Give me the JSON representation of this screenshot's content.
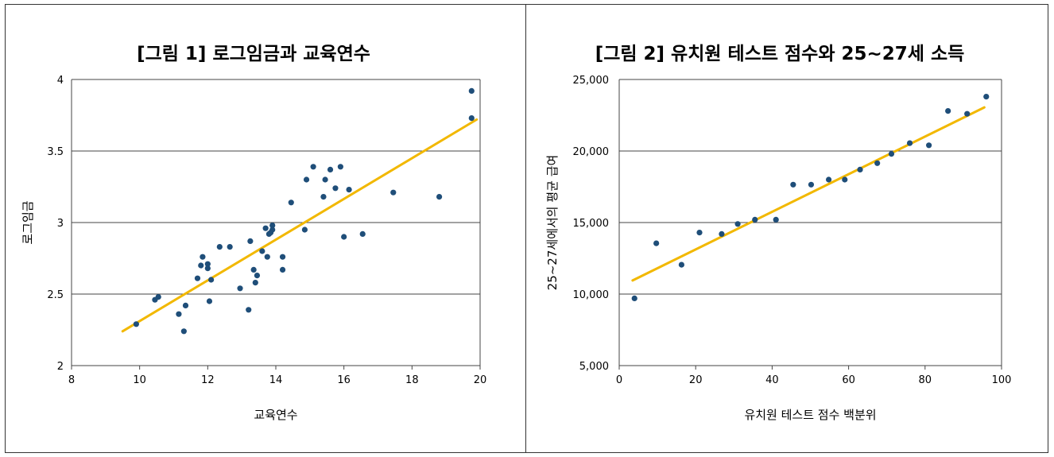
{
  "chart_data": [
    {
      "type": "scatter",
      "title": "[그림 1] 로그임금과 교육연수",
      "xlabel": "교육연수",
      "ylabel": "로그임금",
      "xlim": [
        8,
        20
      ],
      "ylim": [
        2,
        4
      ],
      "xticks": [
        "8",
        "10",
        "12",
        "14",
        "16",
        "18",
        "20"
      ],
      "yticks": [
        "2",
        "2.5",
        "3",
        "3.5",
        "4"
      ],
      "grid": "horizontal",
      "point_color": "#1f4e79",
      "line_color": "#f2b800",
      "series": [
        {
          "kind": "points",
          "x": [
            9.9,
            10.45,
            10.55,
            11.15,
            11.3,
            11.35,
            11.7,
            11.8,
            11.85,
            12.0,
            12.0,
            12.05,
            12.1,
            12.35,
            12.65,
            12.95,
            13.2,
            13.25,
            13.35,
            13.4,
            13.45,
            13.6,
            13.7,
            13.75,
            13.8,
            13.85,
            13.9,
            13.9,
            14.2,
            14.2,
            14.45,
            14.85,
            14.9,
            15.1,
            15.4,
            15.45,
            15.6,
            15.75,
            15.9,
            16.0,
            16.15,
            16.55,
            17.45,
            18.8,
            19.75,
            19.75
          ],
          "y": [
            2.29,
            2.46,
            2.48,
            2.36,
            2.24,
            2.42,
            2.61,
            2.7,
            2.76,
            2.71,
            2.68,
            2.45,
            2.6,
            2.83,
            2.83,
            2.54,
            2.39,
            2.87,
            2.67,
            2.58,
            2.63,
            2.8,
            2.96,
            2.76,
            2.92,
            2.93,
            2.98,
            2.95,
            2.67,
            2.76,
            3.14,
            2.95,
            3.3,
            3.39,
            3.18,
            3.3,
            3.37,
            3.24,
            3.39,
            2.9,
            3.23,
            2.92,
            3.21,
            3.18,
            3.92,
            3.73
          ]
        },
        {
          "kind": "trendline",
          "x": [
            9.5,
            19.9
          ],
          "y": [
            2.24,
            3.72
          ]
        }
      ]
    },
    {
      "type": "scatter",
      "title": "[그림 2] 유치원 테스트 점수와 25~27세 소득",
      "xlabel": "유치원 테스트 점수 백분위",
      "ylabel": "25~27세에서의 평균 급여",
      "xlim": [
        0,
        100
      ],
      "ylim": [
        5000,
        25000
      ],
      "xticks": [
        "0",
        "20",
        "40",
        "60",
        "80",
        "100"
      ],
      "yticks": [
        "5,000",
        "10,000",
        "15,000",
        "20,000",
        "25,000"
      ],
      "grid": "horizontal",
      "point_color": "#1f4e79",
      "line_color": "#f2b800",
      "series": [
        {
          "kind": "points",
          "x": [
            4,
            9.7,
            16.3,
            21,
            26.8,
            31,
            35.5,
            41,
            45.5,
            50.2,
            54.8,
            59,
            63,
            67.5,
            71.2,
            76,
            81,
            86,
            91,
            96
          ],
          "y": [
            9700,
            13550,
            12050,
            14300,
            14200,
            14900,
            15200,
            15200,
            17650,
            17650,
            18000,
            18000,
            18700,
            19150,
            19800,
            20550,
            20400,
            22800,
            22600,
            23800
          ]
        },
        {
          "kind": "trendline",
          "x": [
            3.5,
            95.5
          ],
          "y": [
            10950,
            23050
          ]
        }
      ]
    }
  ]
}
